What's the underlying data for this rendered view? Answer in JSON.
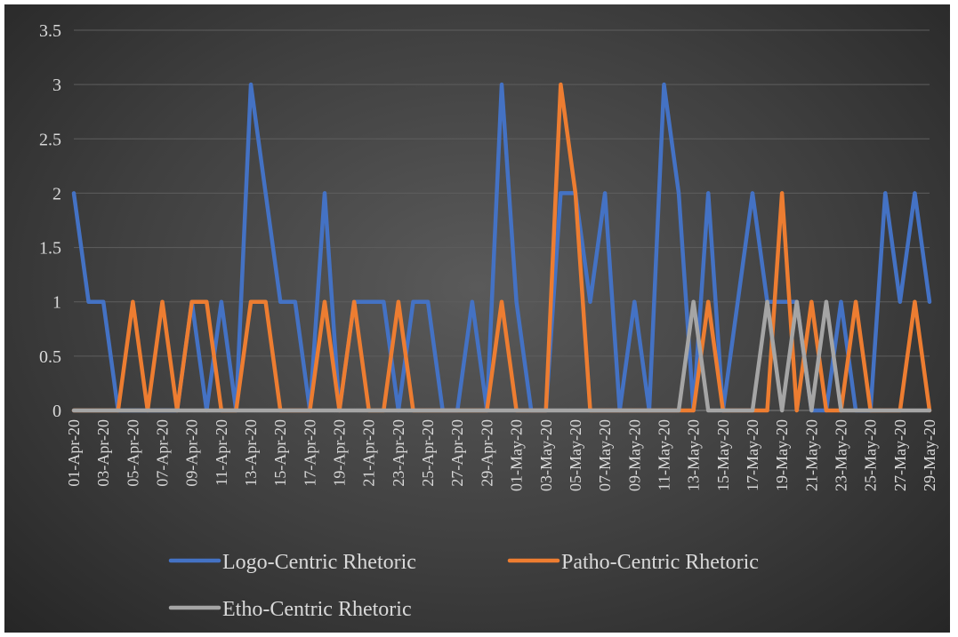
{
  "chart_data": {
    "type": "line",
    "title": "",
    "xlabel": "",
    "ylabel": "",
    "ylim": [
      0,
      3.5
    ],
    "yticks": [
      "0",
      "0.5",
      "1",
      "1.5",
      "2",
      "2.5",
      "3",
      "3.5"
    ],
    "grid": true,
    "legend_position": "bottom",
    "x": [
      "01-Apr-20",
      "02-Apr-20",
      "03-Apr-20",
      "04-Apr-20",
      "05-Apr-20",
      "06-Apr-20",
      "07-Apr-20",
      "08-Apr-20",
      "09-Apr-20",
      "10-Apr-20",
      "11-Apr-20",
      "12-Apr-20",
      "13-Apr-20",
      "14-Apr-20",
      "15-Apr-20",
      "16-Apr-20",
      "17-Apr-20",
      "18-Apr-20",
      "19-Apr-20",
      "20-Apr-20",
      "21-Apr-20",
      "22-Apr-20",
      "23-Apr-20",
      "24-Apr-20",
      "25-Apr-20",
      "26-Apr-20",
      "27-Apr-20",
      "28-Apr-20",
      "29-Apr-20",
      "30-Apr-20",
      "01-May-20",
      "02-May-20",
      "03-May-20",
      "04-May-20",
      "05-May-20",
      "06-May-20",
      "07-May-20",
      "08-May-20",
      "09-May-20",
      "10-May-20",
      "11-May-20",
      "12-May-20",
      "13-May-20",
      "14-May-20",
      "15-May-20",
      "16-May-20",
      "17-May-20",
      "18-May-20",
      "19-May-20",
      "20-May-20",
      "21-May-20",
      "22-May-20",
      "23-May-20",
      "24-May-20",
      "25-May-20",
      "26-May-20",
      "27-May-20",
      "28-May-20",
      "29-May-20"
    ],
    "x_tick_labels": [
      "01-Apr-20",
      "03-Apr-20",
      "05-Apr-20",
      "07-Apr-20",
      "09-Apr-20",
      "11-Apr-20",
      "13-Apr-20",
      "15-Apr-20",
      "17-Apr-20",
      "19-Apr-20",
      "21-Apr-20",
      "23-Apr-20",
      "25-Apr-20",
      "27-Apr-20",
      "29-Apr-20",
      "01-May-20",
      "03-May-20",
      "05-May-20",
      "07-May-20",
      "09-May-20",
      "11-May-20",
      "13-May-20",
      "15-May-20",
      "17-May-20",
      "19-May-20",
      "21-May-20",
      "23-May-20",
      "25-May-20",
      "27-May-20",
      "29-May-20"
    ],
    "series": [
      {
        "name": "Logo-Centric Rhetoric",
        "color": "#4472c4",
        "values": [
          2,
          1,
          1,
          0,
          0,
          0,
          0,
          0,
          1,
          0,
          1,
          0,
          3,
          2,
          1,
          1,
          0,
          2,
          0,
          1,
          1,
          1,
          0,
          1,
          1,
          0,
          0,
          1,
          0,
          3,
          1,
          0,
          0,
          2,
          2,
          1,
          2,
          0,
          1,
          0,
          3,
          2,
          0,
          2,
          0,
          1,
          2,
          1,
          1,
          1,
          0,
          0,
          1,
          0,
          0,
          2,
          1,
          2,
          1
        ]
      },
      {
        "name": "Patho-Centric Rhetoric",
        "color": "#ed7d31",
        "values": [
          0,
          0,
          0,
          0,
          1,
          0,
          1,
          0,
          1,
          1,
          0,
          0,
          1,
          1,
          0,
          0,
          0,
          1,
          0,
          1,
          0,
          0,
          1,
          0,
          0,
          0,
          0,
          0,
          0,
          1,
          0,
          0,
          0,
          3,
          2,
          0,
          0,
          0,
          0,
          0,
          0,
          0,
          0,
          1,
          0,
          0,
          0,
          0,
          2,
          0,
          1,
          0,
          0,
          1,
          0,
          0,
          0,
          1,
          0
        ]
      },
      {
        "name": "Etho-Centric Rhetoric",
        "color": "#a5a5a5",
        "values": [
          0,
          0,
          0,
          0,
          0,
          0,
          0,
          0,
          0,
          0,
          0,
          0,
          0,
          0,
          0,
          0,
          0,
          0,
          0,
          0,
          0,
          0,
          0,
          0,
          0,
          0,
          0,
          0,
          0,
          0,
          0,
          0,
          0,
          0,
          0,
          0,
          0,
          0,
          0,
          0,
          0,
          0,
          1,
          0,
          0,
          0,
          0,
          1,
          0,
          1,
          0,
          1,
          0,
          0,
          0,
          0,
          0,
          0,
          0
        ]
      }
    ]
  }
}
